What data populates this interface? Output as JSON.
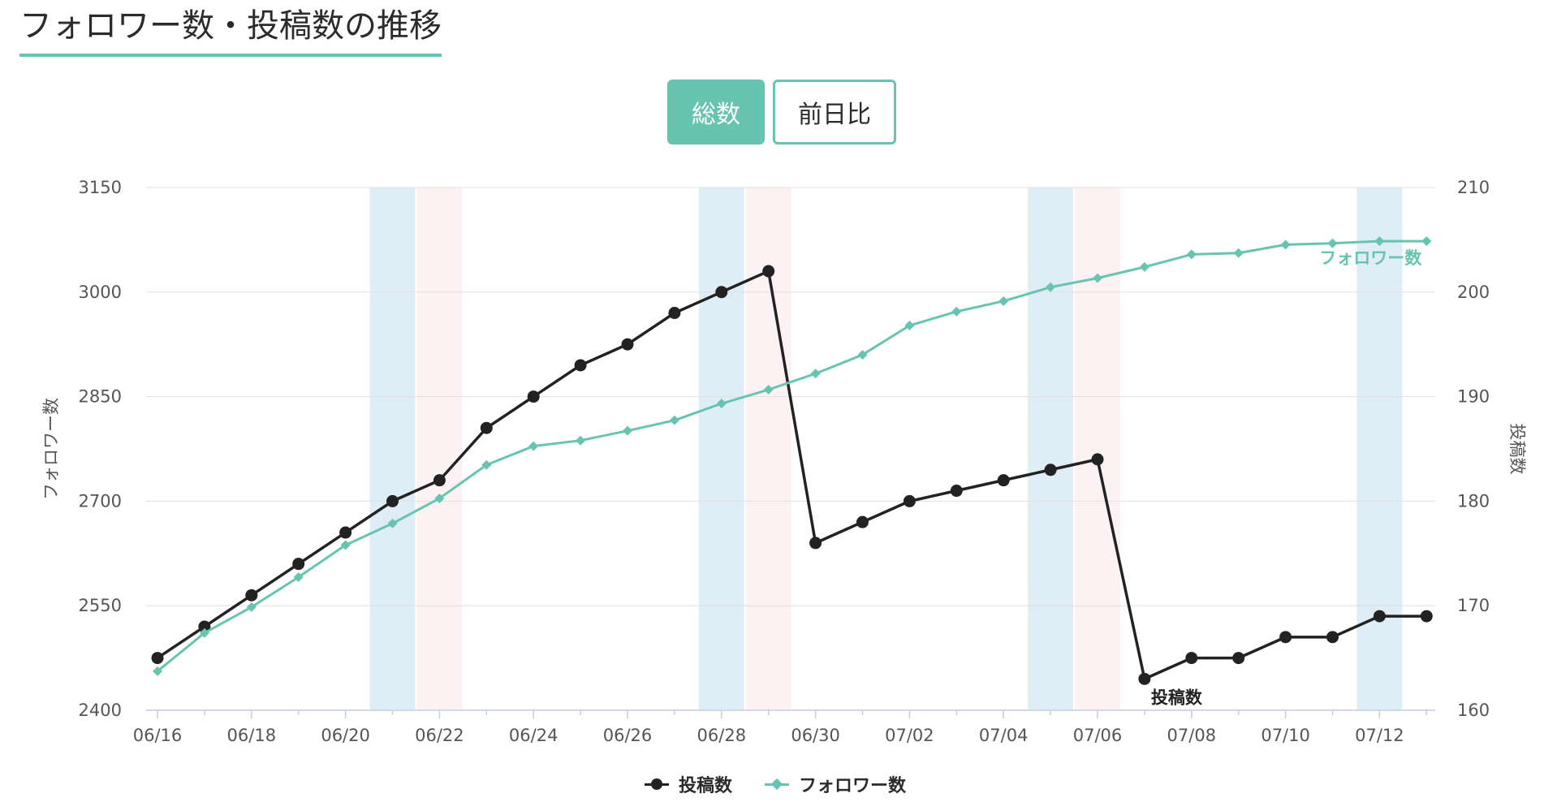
{
  "page_title": "フォロワー数・投稿数の推移",
  "toggle": {
    "total_label": "総数",
    "daily_diff_label": "前日比",
    "selected": "総数"
  },
  "colors": {
    "accent": "#67c4b0",
    "posts": "#222222",
    "followers": "#67c4b0",
    "saturday_band": "#dfedf6",
    "sunday_band": "#fdf2f3",
    "grid": "#e0e0e0"
  },
  "chart_data": {
    "type": "line",
    "x": [
      "06/16",
      "06/17",
      "06/18",
      "06/19",
      "06/20",
      "06/21",
      "06/22",
      "06/23",
      "06/24",
      "06/25",
      "06/26",
      "06/27",
      "06/28",
      "06/29",
      "06/30",
      "07/01",
      "07/02",
      "07/03",
      "07/04",
      "07/05",
      "07/06",
      "07/07",
      "07/08",
      "07/09",
      "07/10",
      "07/11",
      "07/12",
      "07/13"
    ],
    "x_tick_labels": [
      "06/16",
      "06/18",
      "06/20",
      "06/22",
      "06/24",
      "06/26",
      "06/28",
      "06/30",
      "07/02",
      "07/04",
      "07/06",
      "07/08",
      "07/10",
      "07/12"
    ],
    "series": [
      {
        "name": "投稿数",
        "axis": "right",
        "marker": "circle",
        "end_label": "投稿数",
        "values": [
          165,
          168,
          171,
          174,
          177,
          180,
          182,
          187,
          190,
          193,
          195,
          198,
          200,
          202,
          176,
          178,
          180,
          181,
          182,
          183,
          184,
          163,
          165,
          165,
          167,
          167,
          169,
          169
        ]
      },
      {
        "name": "フォロワー数",
        "axis": "left",
        "marker": "diamond",
        "end_label": "フォロワー数",
        "values": [
          2456,
          2511,
          2548,
          2591,
          2637,
          2668,
          2704,
          2752,
          2779,
          2787,
          2801,
          2816,
          2840,
          2860,
          2883,
          2910,
          2952,
          2972,
          2987,
          3007,
          3020,
          3036,
          3054,
          3056,
          3068,
          3070,
          3073,
          3073
        ]
      }
    ],
    "yaxis_left": {
      "title": "フォロワー数",
      "min": 2400,
      "max": 3150,
      "ticks": [
        2400,
        2550,
        2700,
        2850,
        3000,
        3150
      ]
    },
    "yaxis_right": {
      "title": "投稿数",
      "min": 160,
      "max": 210,
      "ticks": [
        160,
        170,
        180,
        190,
        200,
        210
      ]
    },
    "weekend_bands": [
      {
        "date": "06/21",
        "type": "saturday"
      },
      {
        "date": "06/22",
        "type": "sunday"
      },
      {
        "date": "06/28",
        "type": "saturday"
      },
      {
        "date": "06/29",
        "type": "sunday"
      },
      {
        "date": "07/05",
        "type": "saturday"
      },
      {
        "date": "07/06",
        "type": "sunday"
      },
      {
        "date": "07/12",
        "type": "saturday"
      }
    ],
    "grid": true,
    "legend_position": "bottom-center"
  },
  "legend": {
    "posts_label": "投稿数",
    "followers_label": "フォロワー数"
  }
}
